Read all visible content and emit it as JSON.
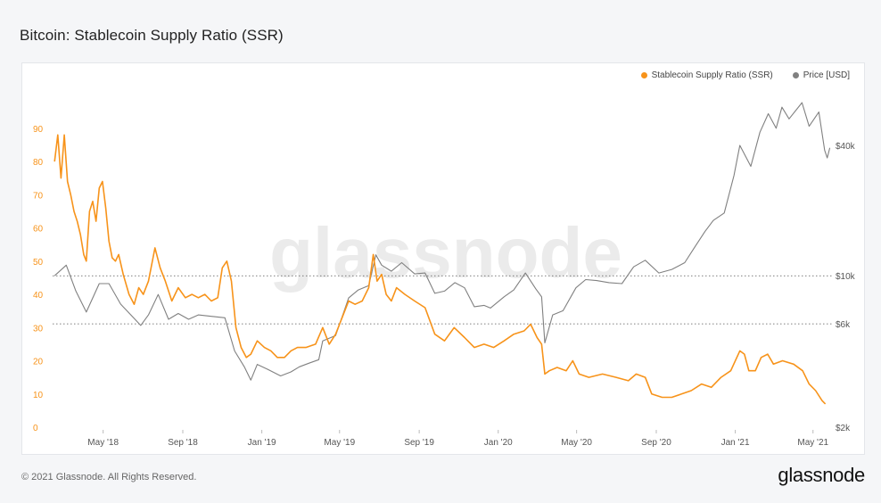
{
  "title": "Bitcoin: Stablecoin Supply Ratio (SSR)",
  "footer": "© 2021 Glassnode. All Rights Reserved.",
  "brand": "glassnode",
  "watermark": "glassnode",
  "colors": {
    "ssr": "#f7931a",
    "price": "#808080"
  },
  "chart_data": {
    "type": "line",
    "x_ticks": [
      "May '18",
      "Sep '18",
      "Jan '19",
      "May '19",
      "Sep '19",
      "Jan '20",
      "May '20",
      "Sep '20",
      "Jan '21",
      "May '21"
    ],
    "y_left": {
      "ticks": [
        0,
        10,
        20,
        30,
        40,
        50,
        60,
        70,
        80,
        90
      ],
      "range": [
        0,
        94
      ]
    },
    "y_right": {
      "ticks": [
        "$2k",
        "$6k",
        "$10k",
        "$40k"
      ],
      "values": [
        2000,
        6000,
        10000,
        40000
      ],
      "scale": "log"
    },
    "grid": "dotted lines at $6k and $10k",
    "legend_position": "top-right",
    "series": [
      {
        "name": "Stablecoin Supply Ratio (SSR)",
        "axis": "left",
        "points": [
          [
            "2018-02-15",
            80
          ],
          [
            "2018-02-20",
            88
          ],
          [
            "2018-02-25",
            75
          ],
          [
            "2018-03-02",
            88
          ],
          [
            "2018-03-07",
            74
          ],
          [
            "2018-03-12",
            70
          ],
          [
            "2018-03-17",
            65
          ],
          [
            "2018-03-22",
            62
          ],
          [
            "2018-03-27",
            58
          ],
          [
            "2018-04-01",
            52
          ],
          [
            "2018-04-05",
            50
          ],
          [
            "2018-04-10",
            65
          ],
          [
            "2018-04-15",
            68
          ],
          [
            "2018-04-20",
            62
          ],
          [
            "2018-04-25",
            72
          ],
          [
            "2018-04-30",
            74
          ],
          [
            "2018-05-05",
            66
          ],
          [
            "2018-05-10",
            56
          ],
          [
            "2018-05-15",
            51
          ],
          [
            "2018-05-20",
            50
          ],
          [
            "2018-05-25",
            52
          ],
          [
            "2018-06-01",
            46
          ],
          [
            "2018-06-10",
            40
          ],
          [
            "2018-06-18",
            37
          ],
          [
            "2018-06-25",
            42
          ],
          [
            "2018-07-02",
            40
          ],
          [
            "2018-07-10",
            44
          ],
          [
            "2018-07-20",
            54
          ],
          [
            "2018-07-28",
            48
          ],
          [
            "2018-08-05",
            44
          ],
          [
            "2018-08-15",
            38
          ],
          [
            "2018-08-25",
            42
          ],
          [
            "2018-09-05",
            39
          ],
          [
            "2018-09-15",
            40
          ],
          [
            "2018-09-25",
            39
          ],
          [
            "2018-10-05",
            40
          ],
          [
            "2018-10-15",
            38
          ],
          [
            "2018-10-25",
            39
          ],
          [
            "2018-11-01",
            48
          ],
          [
            "2018-11-08",
            50
          ],
          [
            "2018-11-15",
            44
          ],
          [
            "2018-11-22",
            30
          ],
          [
            "2018-11-30",
            24
          ],
          [
            "2018-12-08",
            21
          ],
          [
            "2018-12-15",
            22
          ],
          [
            "2018-12-25",
            26
          ],
          [
            "2019-01-05",
            24
          ],
          [
            "2019-01-15",
            23
          ],
          [
            "2019-01-25",
            21
          ],
          [
            "2019-02-05",
            21
          ],
          [
            "2019-02-15",
            23
          ],
          [
            "2019-02-25",
            24
          ],
          [
            "2019-03-10",
            24
          ],
          [
            "2019-03-25",
            25
          ],
          [
            "2019-04-05",
            30
          ],
          [
            "2019-04-15",
            25
          ],
          [
            "2019-04-25",
            28
          ],
          [
            "2019-05-05",
            33
          ],
          [
            "2019-05-15",
            38
          ],
          [
            "2019-05-25",
            37
          ],
          [
            "2019-06-05",
            38
          ],
          [
            "2019-06-15",
            42
          ],
          [
            "2019-06-22",
            52
          ],
          [
            "2019-06-28",
            44
          ],
          [
            "2019-07-05",
            46
          ],
          [
            "2019-07-12",
            40
          ],
          [
            "2019-07-20",
            38
          ],
          [
            "2019-07-28",
            42
          ],
          [
            "2019-08-10",
            40
          ],
          [
            "2019-08-25",
            38
          ],
          [
            "2019-09-10",
            36
          ],
          [
            "2019-09-25",
            28
          ],
          [
            "2019-10-10",
            26
          ],
          [
            "2019-10-25",
            30
          ],
          [
            "2019-11-10",
            27
          ],
          [
            "2019-11-25",
            24
          ],
          [
            "2019-12-10",
            25
          ],
          [
            "2019-12-25",
            24
          ],
          [
            "2020-01-10",
            26
          ],
          [
            "2020-01-25",
            28
          ],
          [
            "2020-02-10",
            29
          ],
          [
            "2020-02-20",
            31
          ],
          [
            "2020-03-01",
            27
          ],
          [
            "2020-03-08",
            25
          ],
          [
            "2020-03-13",
            16
          ],
          [
            "2020-03-20",
            17
          ],
          [
            "2020-04-01",
            18
          ],
          [
            "2020-04-15",
            17
          ],
          [
            "2020-04-25",
            20
          ],
          [
            "2020-05-05",
            16
          ],
          [
            "2020-05-20",
            15
          ],
          [
            "2020-06-10",
            16
          ],
          [
            "2020-07-01",
            15
          ],
          [
            "2020-07-20",
            14
          ],
          [
            "2020-08-01",
            16
          ],
          [
            "2020-08-15",
            15
          ],
          [
            "2020-08-25",
            10
          ],
          [
            "2020-09-10",
            9
          ],
          [
            "2020-09-25",
            9
          ],
          [
            "2020-10-10",
            10
          ],
          [
            "2020-10-25",
            11
          ],
          [
            "2020-11-10",
            13
          ],
          [
            "2020-11-25",
            12
          ],
          [
            "2020-12-10",
            15
          ],
          [
            "2020-12-25",
            17
          ],
          [
            "2021-01-08",
            23
          ],
          [
            "2021-01-15",
            22
          ],
          [
            "2021-01-22",
            17
          ],
          [
            "2021-02-01",
            17
          ],
          [
            "2021-02-10",
            21
          ],
          [
            "2021-02-20",
            22
          ],
          [
            "2021-03-01",
            19
          ],
          [
            "2021-03-15",
            20
          ],
          [
            "2021-04-01",
            19
          ],
          [
            "2021-04-15",
            17
          ],
          [
            "2021-04-25",
            13
          ],
          [
            "2021-05-05",
            11
          ],
          [
            "2021-05-15",
            8
          ],
          [
            "2021-05-20",
            7
          ]
        ]
      },
      {
        "name": "Price [USD]",
        "axis": "right",
        "points": [
          [
            "2018-02-15",
            10000
          ],
          [
            "2018-03-05",
            11200
          ],
          [
            "2018-03-20",
            8500
          ],
          [
            "2018-04-05",
            6800
          ],
          [
            "2018-04-25",
            9200
          ],
          [
            "2018-05-10",
            9200
          ],
          [
            "2018-05-28",
            7400
          ],
          [
            "2018-06-15",
            6500
          ],
          [
            "2018-06-28",
            5900
          ],
          [
            "2018-07-10",
            6600
          ],
          [
            "2018-07-25",
            8200
          ],
          [
            "2018-08-10",
            6300
          ],
          [
            "2018-08-25",
            6700
          ],
          [
            "2018-09-10",
            6300
          ],
          [
            "2018-09-25",
            6600
          ],
          [
            "2018-10-15",
            6500
          ],
          [
            "2018-11-05",
            6400
          ],
          [
            "2018-11-20",
            4500
          ],
          [
            "2018-12-05",
            3800
          ],
          [
            "2018-12-15",
            3300
          ],
          [
            "2018-12-25",
            3900
          ],
          [
            "2019-01-10",
            3700
          ],
          [
            "2019-01-30",
            3450
          ],
          [
            "2019-02-15",
            3600
          ],
          [
            "2019-02-28",
            3800
          ],
          [
            "2019-03-15",
            3950
          ],
          [
            "2019-03-30",
            4100
          ],
          [
            "2019-04-05",
            5000
          ],
          [
            "2019-04-25",
            5300
          ],
          [
            "2019-05-15",
            7900
          ],
          [
            "2019-05-30",
            8600
          ],
          [
            "2019-06-15",
            9000
          ],
          [
            "2019-06-26",
            12500
          ],
          [
            "2019-07-05",
            11200
          ],
          [
            "2019-07-20",
            10500
          ],
          [
            "2019-08-05",
            11500
          ],
          [
            "2019-08-25",
            10200
          ],
          [
            "2019-09-10",
            10300
          ],
          [
            "2019-09-25",
            8300
          ],
          [
            "2019-10-10",
            8500
          ],
          [
            "2019-10-26",
            9300
          ],
          [
            "2019-11-10",
            8800
          ],
          [
            "2019-11-25",
            7200
          ],
          [
            "2019-12-10",
            7300
          ],
          [
            "2019-12-20",
            7100
          ],
          [
            "2020-01-10",
            8000
          ],
          [
            "2020-01-25",
            8600
          ],
          [
            "2020-02-12",
            10300
          ],
          [
            "2020-02-28",
            8700
          ],
          [
            "2020-03-08",
            8000
          ],
          [
            "2020-03-13",
            4900
          ],
          [
            "2020-03-25",
            6600
          ],
          [
            "2020-04-10",
            6900
          ],
          [
            "2020-04-30",
            8800
          ],
          [
            "2020-05-15",
            9600
          ],
          [
            "2020-06-01",
            9500
          ],
          [
            "2020-06-20",
            9300
          ],
          [
            "2020-07-10",
            9200
          ],
          [
            "2020-07-28",
            11000
          ],
          [
            "2020-08-15",
            11800
          ],
          [
            "2020-09-05",
            10300
          ],
          [
            "2020-09-25",
            10700
          ],
          [
            "2020-10-15",
            11500
          ],
          [
            "2020-10-30",
            13500
          ],
          [
            "2020-11-15",
            16000
          ],
          [
            "2020-11-28",
            18000
          ],
          [
            "2020-12-15",
            19500
          ],
          [
            "2020-12-30",
            29000
          ],
          [
            "2021-01-08",
            40000
          ],
          [
            "2021-01-25",
            32000
          ],
          [
            "2021-02-08",
            46000
          ],
          [
            "2021-02-21",
            56000
          ],
          [
            "2021-03-05",
            48000
          ],
          [
            "2021-03-14",
            60000
          ],
          [
            "2021-03-25",
            53000
          ],
          [
            "2021-04-14",
            63000
          ],
          [
            "2021-04-25",
            49000
          ],
          [
            "2021-05-10",
            57000
          ],
          [
            "2021-05-19",
            38000
          ],
          [
            "2021-05-23",
            35000
          ],
          [
            "2021-05-27",
            39000
          ]
        ]
      }
    ]
  }
}
